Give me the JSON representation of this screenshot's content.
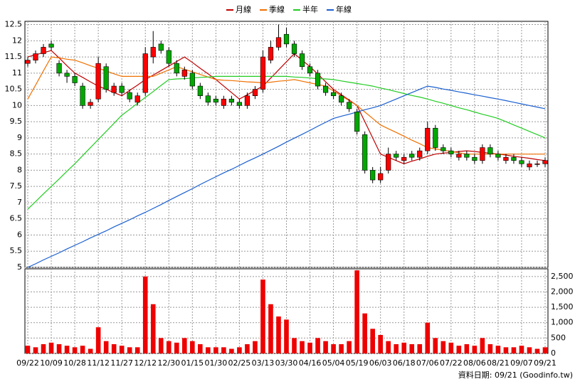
{
  "chart_data": {
    "type": "candlestick",
    "source": "資料日期: 09/21 (Goodinfo.tw)",
    "categories": [
      "09/22",
      null,
      null,
      "10/09",
      null,
      null,
      "10/28",
      null,
      null,
      "11/12",
      null,
      null,
      "11/27",
      null,
      null,
      "12/12",
      null,
      null,
      "12/30",
      null,
      null,
      "01/15",
      null,
      null,
      "01/30",
      null,
      null,
      "02/25",
      null,
      null,
      "03/13",
      null,
      null,
      "03/30",
      null,
      null,
      "04/16",
      null,
      null,
      "05/04",
      null,
      null,
      "05/19",
      null,
      null,
      "06/03",
      null,
      null,
      "06/18",
      null,
      null,
      "07/06",
      null,
      null,
      "07/22",
      null,
      null,
      "08/06",
      null,
      null,
      "08/21",
      null,
      null,
      "09/07",
      null,
      null,
      "09/21"
    ],
    "open": [
      11.3,
      11.4,
      11.6,
      11.9,
      11.3,
      11.0,
      10.9,
      10.6,
      10.0,
      10.2,
      11.2,
      10.4,
      10.6,
      10.4,
      10.1,
      10.4,
      11.5,
      11.9,
      11.7,
      11.3,
      10.9,
      11.0,
      10.6,
      10.3,
      10.2,
      10.0,
      10.2,
      10.1,
      10.0,
      10.3,
      10.5,
      11.4,
      11.8,
      12.2,
      11.9,
      11.6,
      11.2,
      11.0,
      10.6,
      10.4,
      10.3,
      10.1,
      9.8,
      9.1,
      8.0,
      7.7,
      8.0,
      8.5,
      8.3,
      8.5,
      8.4,
      8.6,
      9.3,
      8.7,
      8.6,
      8.4,
      8.5,
      8.4,
      8.3,
      8.7,
      8.5,
      8.3,
      8.4,
      8.3,
      8.1,
      8.2,
      8.2
    ],
    "high": [
      11.5,
      11.7,
      11.9,
      12.0,
      11.4,
      11.1,
      11.0,
      10.7,
      10.2,
      11.5,
      11.3,
      10.7,
      10.7,
      10.5,
      10.4,
      11.8,
      12.3,
      12.0,
      11.8,
      11.4,
      11.2,
      11.1,
      10.7,
      10.4,
      10.3,
      10.3,
      10.3,
      10.2,
      10.4,
      10.6,
      11.7,
      12.0,
      12.5,
      12.4,
      12.0,
      11.7,
      11.3,
      11.1,
      10.7,
      10.5,
      10.4,
      10.2,
      9.9,
      9.2,
      8.1,
      8.1,
      8.7,
      8.6,
      8.5,
      8.6,
      8.7,
      9.5,
      9.4,
      8.8,
      8.7,
      8.6,
      8.6,
      8.5,
      8.8,
      8.8,
      8.6,
      8.5,
      8.5,
      8.4,
      8.3,
      8.3,
      8.4
    ],
    "low": [
      11.2,
      11.3,
      11.5,
      11.7,
      10.9,
      10.7,
      10.6,
      9.9,
      9.9,
      10.1,
      10.4,
      10.3,
      10.3,
      10.1,
      10.0,
      10.3,
      11.3,
      11.6,
      11.2,
      10.9,
      10.8,
      10.5,
      10.2,
      10.0,
      10.0,
      9.9,
      10.0,
      9.9,
      9.9,
      10.2,
      10.4,
      11.3,
      11.7,
      11.8,
      11.5,
      11.1,
      10.9,
      10.5,
      10.3,
      10.2,
      10.0,
      9.8,
      9.1,
      7.9,
      7.6,
      7.6,
      7.9,
      8.3,
      8.2,
      8.3,
      8.3,
      8.5,
      8.6,
      8.5,
      8.4,
      8.3,
      8.3,
      8.2,
      8.2,
      8.4,
      8.3,
      8.2,
      8.2,
      8.1,
      8.0,
      8.1,
      8.1
    ],
    "close": [
      11.4,
      11.6,
      11.8,
      11.8,
      11.0,
      10.9,
      10.7,
      10.0,
      10.1,
      11.3,
      10.5,
      10.6,
      10.4,
      10.2,
      10.3,
      11.6,
      11.8,
      11.7,
      11.3,
      11.0,
      11.1,
      10.6,
      10.3,
      10.1,
      10.1,
      10.2,
      10.1,
      10.0,
      10.3,
      10.5,
      11.5,
      11.8,
      12.1,
      11.9,
      11.6,
      11.2,
      11.0,
      10.6,
      10.4,
      10.3,
      10.1,
      9.9,
      9.2,
      8.0,
      7.7,
      7.9,
      8.5,
      8.4,
      8.4,
      8.4,
      8.6,
      9.3,
      8.7,
      8.6,
      8.5,
      8.5,
      8.4,
      8.3,
      8.7,
      8.5,
      8.4,
      8.4,
      8.3,
      8.2,
      8.2,
      8.2,
      8.3
    ],
    "up_color": "#ff0000",
    "down_color": "#00a800",
    "series": [
      {
        "name": "月線",
        "color": "#c00000",
        "values": [
          11.5,
          11.57,
          11.63,
          11.7,
          11.47,
          11.23,
          11.0,
          10.87,
          10.73,
          10.6,
          10.5,
          10.4,
          10.3,
          10.47,
          10.63,
          10.8,
          10.94,
          11.08,
          11.22,
          11.36,
          11.5,
          11.33,
          11.15,
          10.98,
          10.8,
          10.6,
          10.4,
          10.2,
          10.33,
          10.47,
          10.6,
          10.85,
          11.1,
          11.35,
          11.6,
          11.4,
          11.2,
          10.97,
          10.73,
          10.5,
          10.33,
          10.17,
          10.0,
          9.5,
          9.0,
          8.5,
          8.4,
          8.3,
          8.2,
          8.28,
          8.35,
          8.43,
          8.5,
          8.53,
          8.55,
          8.58,
          8.6,
          8.58,
          8.55,
          8.53,
          8.5,
          8.47,
          8.43,
          8.4,
          8.37,
          8.33,
          8.3
        ]
      },
      {
        "name": "季線",
        "color": "#f07000",
        "values": [
          10.2,
          10.63,
          11.07,
          11.5,
          11.47,
          11.43,
          11.4,
          11.32,
          11.23,
          11.15,
          11.07,
          10.98,
          10.9,
          10.9,
          10.9,
          10.9,
          10.9,
          11.0,
          11.1,
          11.2,
          11.12,
          11.04,
          10.96,
          10.88,
          10.8,
          10.78,
          10.77,
          10.75,
          10.73,
          10.72,
          10.7,
          10.72,
          10.75,
          10.77,
          10.8,
          10.75,
          10.7,
          10.65,
          10.6,
          10.45,
          10.3,
          10.15,
          10.0,
          9.8,
          9.6,
          9.4,
          9.28,
          9.17,
          9.05,
          8.93,
          8.82,
          8.7,
          8.66,
          8.62,
          8.58,
          8.54,
          8.5,
          8.5,
          8.5,
          8.5,
          8.5,
          8.5,
          8.5,
          8.5,
          8.5,
          8.5,
          8.5
        ]
      },
      {
        "name": "半年",
        "color": "#22cc22",
        "values": [
          6.8,
          7.03,
          7.27,
          7.5,
          7.73,
          7.97,
          8.2,
          8.45,
          8.7,
          8.95,
          9.2,
          9.45,
          9.7,
          9.88,
          10.07,
          10.25,
          10.43,
          10.62,
          10.8,
          10.82,
          10.83,
          10.85,
          10.87,
          10.88,
          10.9,
          10.9,
          10.9,
          10.9,
          10.9,
          10.9,
          10.9,
          10.9,
          10.9,
          10.9,
          10.88,
          10.87,
          10.85,
          10.83,
          10.82,
          10.8,
          10.76,
          10.72,
          10.68,
          10.64,
          10.6,
          10.54,
          10.49,
          10.43,
          10.37,
          10.31,
          10.26,
          10.2,
          10.13,
          10.07,
          10.0,
          9.93,
          9.87,
          9.8,
          9.73,
          9.67,
          9.6,
          9.5,
          9.4,
          9.3,
          9.2,
          9.1,
          9.0
        ]
      },
      {
        "name": "年線",
        "color": "#1a5fd0",
        "values": [
          5.0,
          5.11,
          5.23,
          5.34,
          5.45,
          5.57,
          5.68,
          5.79,
          5.91,
          6.02,
          6.13,
          6.25,
          6.36,
          6.47,
          6.59,
          6.7,
          6.82,
          6.94,
          7.07,
          7.19,
          7.31,
          7.43,
          7.56,
          7.68,
          7.8,
          7.92,
          8.03,
          8.15,
          8.27,
          8.38,
          8.5,
          8.62,
          8.74,
          8.87,
          8.99,
          9.11,
          9.23,
          9.36,
          9.48,
          9.6,
          9.67,
          9.73,
          9.8,
          9.87,
          9.93,
          10.0,
          10.1,
          10.2,
          10.3,
          10.4,
          10.5,
          10.6,
          10.56,
          10.51,
          10.47,
          10.42,
          10.38,
          10.33,
          10.29,
          10.24,
          10.2,
          10.15,
          10.1,
          10.05,
          10.0,
          9.95,
          9.9
        ]
      }
    ],
    "ylim": [
      5,
      12.6
    ],
    "yticks": [
      5,
      5.5,
      6,
      6.5,
      7,
      7.5,
      8,
      8.5,
      9,
      9.5,
      10,
      10.5,
      11,
      11.5,
      12,
      12.5
    ],
    "volume": [
      250,
      200,
      300,
      350,
      300,
      250,
      200,
      250,
      150,
      850,
      400,
      300,
      250,
      200,
      200,
      2500,
      1600,
      500,
      400,
      350,
      500,
      400,
      300,
      200,
      200,
      200,
      150,
      200,
      300,
      400,
      2400,
      1600,
      1200,
      1100,
      500,
      400,
      350,
      500,
      400,
      300,
      300,
      400,
      2700,
      1300,
      800,
      600,
      400,
      300,
      350,
      300,
      300,
      1000,
      500,
      400,
      350,
      250,
      300,
      250,
      500,
      300,
      250,
      200,
      200,
      250,
      200,
      150,
      200
    ],
    "volume_color": "#ee0000",
    "vlim": [
      0,
      2750
    ],
    "vticks": [
      0,
      500,
      {
        "value": 1000,
        "label": "1,000"
      },
      {
        "value": 1500,
        "label": "1,500"
      },
      {
        "value": 2000,
        "label": "2,000"
      },
      {
        "value": 2500,
        "label": "2,500"
      }
    ],
    "grid": true
  }
}
